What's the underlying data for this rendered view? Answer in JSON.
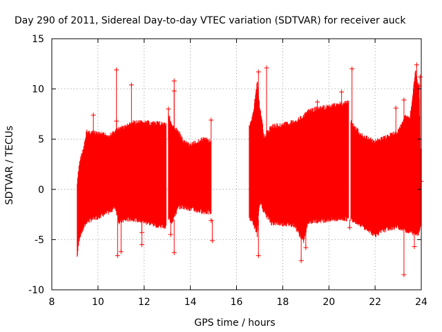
{
  "chart_data": {
    "type": "scatter",
    "title": "Day 290 of 2011, Sidereal Day-to-day VTEC variation (SDTVAR) for receiver auck",
    "xlabel": "GPS time / hours",
    "ylabel": "SDTVAR / TECUs",
    "xlim": [
      8,
      24
    ],
    "ylim": [
      -10,
      15
    ],
    "xticks": [
      8,
      10,
      12,
      14,
      16,
      18,
      20,
      22,
      24
    ],
    "yticks": [
      -10,
      -5,
      0,
      5,
      10,
      15
    ],
    "grid": true,
    "marker": "+",
    "series_color": "#ff0000",
    "envelope": {
      "note": "Dense error-bar band; upper and lower extents of SDTVAR (TECU) vs GPS time (hours)",
      "segments": [
        {
          "x": [
            9.1,
            9.2,
            9.4,
            9.5,
            10.0,
            10.5,
            10.75,
            10.9,
            11.2,
            11.5,
            12.0,
            12.5,
            12.95
          ],
          "upper": [
            0.8,
            3.0,
            4.5,
            6.0,
            5.8,
            5.6,
            6.0,
            6.3,
            6.5,
            6.9,
            6.9,
            6.8,
            6.8
          ],
          "lower": [
            -7.0,
            -5.0,
            -4.0,
            -3.5,
            -3.0,
            -2.5,
            -2.0,
            -3.5,
            -3.3,
            -3.2,
            -3.5,
            -3.8,
            -4.0
          ]
        },
        {
          "x": [
            13.05,
            13.2,
            13.5,
            13.7,
            14.0,
            14.3,
            14.6,
            14.9
          ],
          "upper": [
            7.9,
            6.5,
            6.0,
            5.0,
            4.7,
            5.0,
            5.3,
            5.0
          ],
          "lower": [
            -3.2,
            -3.5,
            -2.0,
            -2.0,
            -2.2,
            -2.4,
            -2.5,
            -2.6
          ]
        },
        {
          "x": [
            16.55,
            16.7,
            16.9,
            17.0,
            17.2,
            17.5,
            18.0,
            18.5,
            18.9,
            19.1,
            19.5,
            20.0,
            20.5,
            20.85
          ],
          "upper": [
            6.5,
            7.5,
            11.0,
            8.5,
            5.5,
            6.5,
            6.7,
            7.0,
            7.5,
            8.0,
            8.3,
            8.5,
            8.8,
            8.9
          ],
          "lower": [
            -3.0,
            -3.5,
            -4.8,
            -1.5,
            -2.5,
            -3.6,
            -3.7,
            -3.8,
            -5.5,
            -3.5,
            -3.4,
            -3.3,
            -3.2,
            -3.2
          ]
        },
        {
          "x": [
            20.95,
            21.2,
            21.5,
            22.0,
            22.5,
            23.0,
            23.3,
            23.5,
            23.75,
            23.9,
            24.0
          ],
          "upper": [
            7.0,
            6.2,
            5.5,
            5.0,
            5.5,
            6.0,
            7.5,
            7.2,
            12.0,
            10.0,
            1.5
          ],
          "lower": [
            -3.2,
            -3.5,
            -4.0,
            -4.8,
            -4.2,
            -4.0,
            -4.3,
            -4.5,
            -4.7,
            -4.6,
            -3.5
          ]
        }
      ]
    },
    "outliers": [
      {
        "x": 9.8,
        "y": 7.4
      },
      {
        "x": 10.8,
        "y": 11.9
      },
      {
        "x": 10.8,
        "y": 6.8
      },
      {
        "x": 10.85,
        "y": -6.6
      },
      {
        "x": 11.45,
        "y": 10.4
      },
      {
        "x": 11.0,
        "y": -6.2
      },
      {
        "x": 11.9,
        "y": -4.3
      },
      {
        "x": 11.9,
        "y": -5.5
      },
      {
        "x": 13.05,
        "y": 8.0
      },
      {
        "x": 13.15,
        "y": -4.5
      },
      {
        "x": 13.3,
        "y": 10.8
      },
      {
        "x": 13.3,
        "y": 9.8
      },
      {
        "x": 13.3,
        "y": -6.3
      },
      {
        "x": 14.9,
        "y": 6.9
      },
      {
        "x": 14.9,
        "y": -3.1
      },
      {
        "x": 14.95,
        "y": -5.1
      },
      {
        "x": 16.95,
        "y": 11.7
      },
      {
        "x": 16.95,
        "y": -6.6
      },
      {
        "x": 17.3,
        "y": 12.1
      },
      {
        "x": 18.8,
        "y": -7.1
      },
      {
        "x": 19.0,
        "y": -5.8
      },
      {
        "x": 19.5,
        "y": 8.7
      },
      {
        "x": 20.55,
        "y": 9.7
      },
      {
        "x": 21.0,
        "y": 12.0
      },
      {
        "x": 20.9,
        "y": -3.8
      },
      {
        "x": 22.9,
        "y": 8.1
      },
      {
        "x": 23.25,
        "y": 8.9
      },
      {
        "x": 23.25,
        "y": -8.5
      },
      {
        "x": 23.8,
        "y": 12.4
      },
      {
        "x": 23.9,
        "y": 10.3
      },
      {
        "x": 23.7,
        "y": -5.7
      },
      {
        "x": 23.95,
        "y": 11.2
      },
      {
        "x": 24.0,
        "y": 0.8
      }
    ]
  }
}
